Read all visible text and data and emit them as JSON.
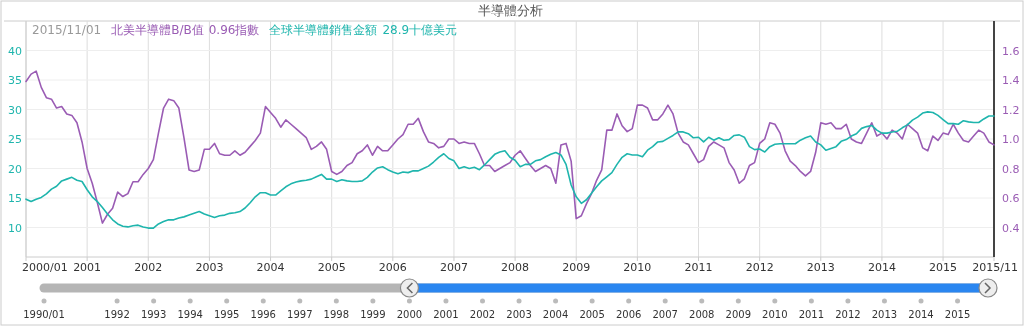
{
  "chart_data": {
    "type": "line",
    "title": "半導體分析",
    "annotations": [
      "2015/11/01",
      "0.96指數",
      "28.9十億美元"
    ],
    "x": [
      "2000-01",
      "2000-02",
      "2000-03",
      "2000-04",
      "2000-05",
      "2000-06",
      "2000-07",
      "2000-08",
      "2000-09",
      "2000-10",
      "2000-11",
      "2000-12",
      "2001-01",
      "2001-02",
      "2001-03",
      "2001-04",
      "2001-05",
      "2001-06",
      "2001-07",
      "2001-08",
      "2001-09",
      "2001-10",
      "2001-11",
      "2001-12",
      "2002-01",
      "2002-02",
      "2002-03",
      "2002-04",
      "2002-05",
      "2002-06",
      "2002-07",
      "2002-08",
      "2002-09",
      "2002-10",
      "2002-11",
      "2002-12",
      "2003-01",
      "2003-02",
      "2003-03",
      "2003-04",
      "2003-05",
      "2003-06",
      "2003-07",
      "2003-08",
      "2003-09",
      "2003-10",
      "2003-11",
      "2003-12",
      "2004-01",
      "2004-02",
      "2004-03",
      "2004-04",
      "2004-05",
      "2004-06",
      "2004-07",
      "2004-08",
      "2004-09",
      "2004-10",
      "2004-11",
      "2004-12",
      "2005-01",
      "2005-02",
      "2005-03",
      "2005-04",
      "2005-05",
      "2005-06",
      "2005-07",
      "2005-08",
      "2005-09",
      "2005-10",
      "2005-11",
      "2005-12",
      "2006-01",
      "2006-02",
      "2006-03",
      "2006-04",
      "2006-05",
      "2006-06",
      "2006-07",
      "2006-08",
      "2006-09",
      "2006-10",
      "2006-11",
      "2006-12",
      "2007-01",
      "2007-02",
      "2007-03",
      "2007-04",
      "2007-05",
      "2007-06",
      "2007-07",
      "2007-08",
      "2007-09",
      "2007-10",
      "2007-11",
      "2007-12",
      "2008-01",
      "2008-02",
      "2008-03",
      "2008-04",
      "2008-05",
      "2008-06",
      "2008-07",
      "2008-08",
      "2008-09",
      "2008-10",
      "2008-11",
      "2008-12",
      "2009-01",
      "2009-02",
      "2009-03",
      "2009-04",
      "2009-05",
      "2009-06",
      "2009-07",
      "2009-08",
      "2009-09",
      "2009-10",
      "2009-11",
      "2009-12",
      "2010-01",
      "2010-02",
      "2010-03",
      "2010-04",
      "2010-05",
      "2010-06",
      "2010-07",
      "2010-08",
      "2010-09",
      "2010-10",
      "2010-11",
      "2010-12",
      "2011-01",
      "2011-02",
      "2011-03",
      "2011-04",
      "2011-05",
      "2011-06",
      "2011-07",
      "2011-08",
      "2011-09",
      "2011-10",
      "2011-11",
      "2011-12",
      "2012-01",
      "2012-02",
      "2012-03",
      "2012-04",
      "2012-05",
      "2012-06",
      "2012-07",
      "2012-08",
      "2012-09",
      "2012-10",
      "2012-11",
      "2012-12",
      "2013-01",
      "2013-02",
      "2013-03",
      "2013-04",
      "2013-05",
      "2013-06",
      "2013-07",
      "2013-08",
      "2013-09",
      "2013-10",
      "2013-11",
      "2013-12",
      "2014-01",
      "2014-02",
      "2014-03",
      "2014-04",
      "2014-05",
      "2014-06",
      "2014-07",
      "2014-08",
      "2014-09",
      "2014-10",
      "2014-11",
      "2014-12",
      "2015-01",
      "2015-02",
      "2015-03",
      "2015-04",
      "2015-05",
      "2015-06",
      "2015-07",
      "2015-08",
      "2015-09",
      "2015-10",
      "2015-11"
    ],
    "series": [
      {
        "name": "北美半導體B/B值",
        "color": "#9a5cb4",
        "axis": "y2",
        "values": [
          1.39,
          1.44,
          1.46,
          1.35,
          1.28,
          1.27,
          1.21,
          1.22,
          1.17,
          1.16,
          1.11,
          0.98,
          0.8,
          0.7,
          0.57,
          0.43,
          0.49,
          0.53,
          0.64,
          0.61,
          0.63,
          0.71,
          0.71,
          0.76,
          0.8,
          0.86,
          1.04,
          1.21,
          1.27,
          1.26,
          1.21,
          1.01,
          0.79,
          0.78,
          0.79,
          0.93,
          0.93,
          0.97,
          0.9,
          0.89,
          0.89,
          0.92,
          0.89,
          0.91,
          0.95,
          0.99,
          1.04,
          1.22,
          1.18,
          1.14,
          1.08,
          1.13,
          1.1,
          1.07,
          1.04,
          1.01,
          0.93,
          0.95,
          0.98,
          0.93,
          0.78,
          0.76,
          0.78,
          0.82,
          0.84,
          0.9,
          0.92,
          0.96,
          0.89,
          0.95,
          0.92,
          0.92,
          0.96,
          1.0,
          1.03,
          1.1,
          1.1,
          1.14,
          1.05,
          0.98,
          0.97,
          0.94,
          0.95,
          1.0,
          1.0,
          0.97,
          0.98,
          0.97,
          0.97,
          0.9,
          0.82,
          0.82,
          0.78,
          0.8,
          0.82,
          0.84,
          0.89,
          0.92,
          0.87,
          0.82,
          0.78,
          0.8,
          0.82,
          0.8,
          0.7,
          0.96,
          0.97,
          0.85,
          0.46,
          0.48,
          0.56,
          0.63,
          0.72,
          0.79,
          1.06,
          1.06,
          1.17,
          1.09,
          1.05,
          1.07,
          1.23,
          1.23,
          1.21,
          1.13,
          1.13,
          1.17,
          1.23,
          1.17,
          1.04,
          0.98,
          0.96,
          0.9,
          0.84,
          0.86,
          0.95,
          0.98,
          0.96,
          0.94,
          0.84,
          0.79,
          0.7,
          0.73,
          0.82,
          0.84,
          0.97,
          1.0,
          1.11,
          1.1,
          1.04,
          0.92,
          0.85,
          0.82,
          0.78,
          0.75,
          0.78,
          0.91,
          1.11,
          1.1,
          1.11,
          1.07,
          1.07,
          1.1,
          1.0,
          0.98,
          0.97,
          1.04,
          1.11,
          1.02,
          1.04,
          1.0,
          1.06,
          1.04,
          1.0,
          1.1,
          1.07,
          1.04,
          0.94,
          0.92,
          1.02,
          0.99,
          1.04,
          1.03,
          1.1,
          1.04,
          0.99,
          0.98,
          1.02,
          1.06,
          1.04,
          0.98,
          0.96
        ]
      },
      {
        "name": "全球半導體銷售金額",
        "color": "#1fb5ad",
        "values": [
          14.8,
          14.4,
          14.8,
          15.1,
          15.7,
          16.5,
          17.0,
          17.9,
          18.2,
          18.5,
          18.0,
          17.8,
          16.4,
          15.2,
          14.4,
          13.4,
          12.3,
          11.3,
          10.6,
          10.2,
          10.1,
          10.3,
          10.4,
          10.1,
          9.9,
          9.9,
          10.6,
          11.0,
          11.3,
          11.3,
          11.6,
          11.8,
          12.1,
          12.4,
          12.7,
          12.3,
          12.0,
          11.7,
          12.0,
          12.1,
          12.4,
          12.5,
          12.7,
          13.3,
          14.2,
          15.2,
          15.9,
          15.9,
          15.5,
          15.5,
          16.2,
          16.9,
          17.4,
          17.7,
          17.9,
          18.0,
          18.2,
          18.6,
          19.0,
          18.2,
          18.2,
          17.8,
          18.1,
          17.9,
          17.8,
          17.8,
          17.9,
          18.5,
          19.4,
          20.1,
          20.3,
          19.8,
          19.4,
          19.1,
          19.4,
          19.3,
          19.6,
          19.6,
          20.0,
          20.4,
          21.1,
          21.9,
          22.5,
          21.7,
          21.3,
          20.0,
          20.3,
          20.0,
          20.2,
          19.8,
          20.6,
          21.5,
          22.4,
          22.8,
          23.0,
          21.9,
          21.4,
          20.3,
          20.7,
          20.7,
          21.3,
          21.5,
          22.0,
          22.4,
          22.7,
          22.3,
          20.7,
          17.2,
          15.2,
          14.1,
          14.7,
          15.8,
          16.9,
          17.9,
          18.6,
          19.3,
          20.7,
          21.9,
          22.5,
          22.3,
          22.3,
          22.0,
          23.1,
          23.7,
          24.5,
          24.6,
          25.1,
          25.6,
          26.2,
          26.2,
          25.9,
          25.2,
          25.3,
          24.5,
          25.3,
          24.8,
          25.2,
          24.8,
          24.9,
          25.6,
          25.7,
          25.3,
          23.7,
          23.2,
          23.3,
          22.8,
          23.7,
          24.1,
          24.2,
          24.2,
          24.2,
          24.2,
          24.8,
          25.2,
          25.5,
          24.5,
          24.0,
          23.1,
          23.4,
          23.7,
          24.6,
          24.9,
          25.5,
          25.9,
          26.8,
          27.1,
          27.3,
          26.5,
          26.0,
          26.0,
          26.2,
          26.3,
          26.9,
          27.4,
          28.2,
          28.7,
          29.4,
          29.6,
          29.5,
          29.0,
          28.3,
          27.6,
          27.6,
          27.5,
          28.1,
          27.9,
          27.8,
          27.8,
          28.4,
          28.9,
          28.9
        ]
      }
    ],
    "xlim": [
      "2000-01",
      "2015-11"
    ],
    "xticks": [
      {
        "value": "2000-01",
        "label": "2000/01"
      },
      "2001",
      "2002",
      "2003",
      "2004",
      "2005",
      "2006",
      "2007",
      "2008",
      "2009",
      "2010",
      "2011",
      "2012",
      "2013",
      "2014",
      "2015",
      {
        "value": "2015-11",
        "label": "2015/11"
      }
    ],
    "x2lim": [
      "1990-01",
      "2015-11"
    ],
    "x2ticks": [
      {
        "value": "1990-01",
        "label": "1990/01"
      },
      "1992",
      "1993",
      "1994",
      "1995",
      "1996",
      "1997",
      "1998",
      "1999",
      "2000",
      "2001",
      "2002",
      "2003",
      "2004",
      "2005",
      "2006",
      "2007",
      "2008",
      "2009",
      "2010",
      "2011",
      "2012",
      "2013",
      "2014",
      "2015"
    ],
    "ylim": [
      5,
      45
    ],
    "yticks": [
      10,
      15,
      20,
      25,
      30,
      35,
      40
    ],
    "y2lim": [
      0.2,
      1.8
    ],
    "y2ticks": [
      0.4,
      0.6,
      0.8,
      {
        "value": 1.0,
        "label": "1.0"
      },
      1.2,
      1.4,
      1.6
    ],
    "grid": true,
    "legend": "top left",
    "line_style": "solid"
  }
}
